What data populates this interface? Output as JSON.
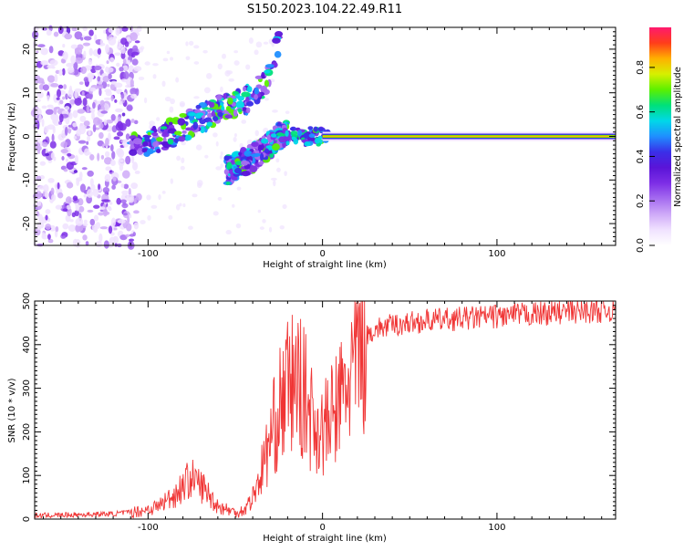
{
  "title": "S150.2023.104.22.49.R11",
  "colors": {
    "snr_line": "#f03535",
    "axis": "#000000",
    "spectrogram_palette": [
      "#ffffff",
      "#f0e2ff",
      "#cfaaf8",
      "#a56cf0",
      "#7d2ee6",
      "#5a14d8",
      "#3a2fe8",
      "#1f8fff",
      "#00d8e8",
      "#00e07a",
      "#5cf000",
      "#d6f000",
      "#ffb000",
      "#ff3d1a",
      "#ff1a6e"
    ]
  },
  "chart_data": [
    {
      "type": "heatmap",
      "title": "S150.2023.104.22.49.R11",
      "xlabel": "Height of straight line (km)",
      "ylabel": "Frequency (Hz)",
      "xlim": [
        -165,
        168
      ],
      "ylim": [
        -25,
        25
      ],
      "x_ticks": [
        -100,
        0,
        100
      ],
      "y_ticks": [
        -20,
        -10,
        0,
        10,
        20
      ],
      "colorbar": {
        "label": "Normalized spectral amplitude",
        "range": [
          0.0,
          0.98
        ],
        "ticks": [
          0.0,
          0.2,
          0.4,
          0.6,
          0.8
        ]
      },
      "features": [
        {
          "name": "narrowband",
          "x_range": [
            0,
            168
          ],
          "frequency_hz": 0,
          "amplitude": 0.85
        },
        {
          "name": "noise",
          "x_range": [
            -165,
            -105
          ],
          "frequency_range_hz": [
            -25,
            25
          ],
          "amplitude": 0.1
        },
        {
          "name": "positive_doppler_branch",
          "x": [
            -110,
            -90,
            -75,
            -55,
            -40,
            -30,
            -25
          ],
          "frequency_hz": [
            -3,
            0,
            3,
            7,
            9,
            14,
            22
          ]
        },
        {
          "name": "negative_doppler_branch",
          "x": [
            -55,
            -40,
            -30,
            -25,
            -20
          ],
          "frequency_hz": [
            -8,
            -5,
            -2,
            0,
            1
          ]
        }
      ]
    },
    {
      "type": "line",
      "xlabel": "Height of straight line (km)",
      "ylabel": "SNR (10 * v/v)",
      "xlim": [
        -165,
        168
      ],
      "ylim": [
        0,
        500
      ],
      "x_ticks": [
        -100,
        0,
        100
      ],
      "y_ticks": [
        0,
        100,
        200,
        300,
        400,
        500
      ],
      "series": [
        {
          "x": [
            -165,
            -140,
            -120,
            -105,
            -95,
            -85,
            -80,
            -76,
            -72,
            -68,
            -60,
            -50,
            -45,
            -40,
            -35,
            -30,
            -25,
            -20,
            -15,
            -10,
            -5,
            0,
            5,
            10,
            15,
            20,
            25,
            30,
            40,
            60,
            80,
            100,
            120,
            140,
            168
          ],
          "values": [
            8,
            10,
            12,
            18,
            28,
            55,
            75,
            95,
            85,
            70,
            30,
            15,
            20,
            50,
            110,
            180,
            250,
            300,
            320,
            280,
            220,
            200,
            230,
            270,
            320,
            380,
            420,
            435,
            445,
            455,
            460,
            465,
            470,
            475,
            480
          ]
        }
      ]
    }
  ]
}
